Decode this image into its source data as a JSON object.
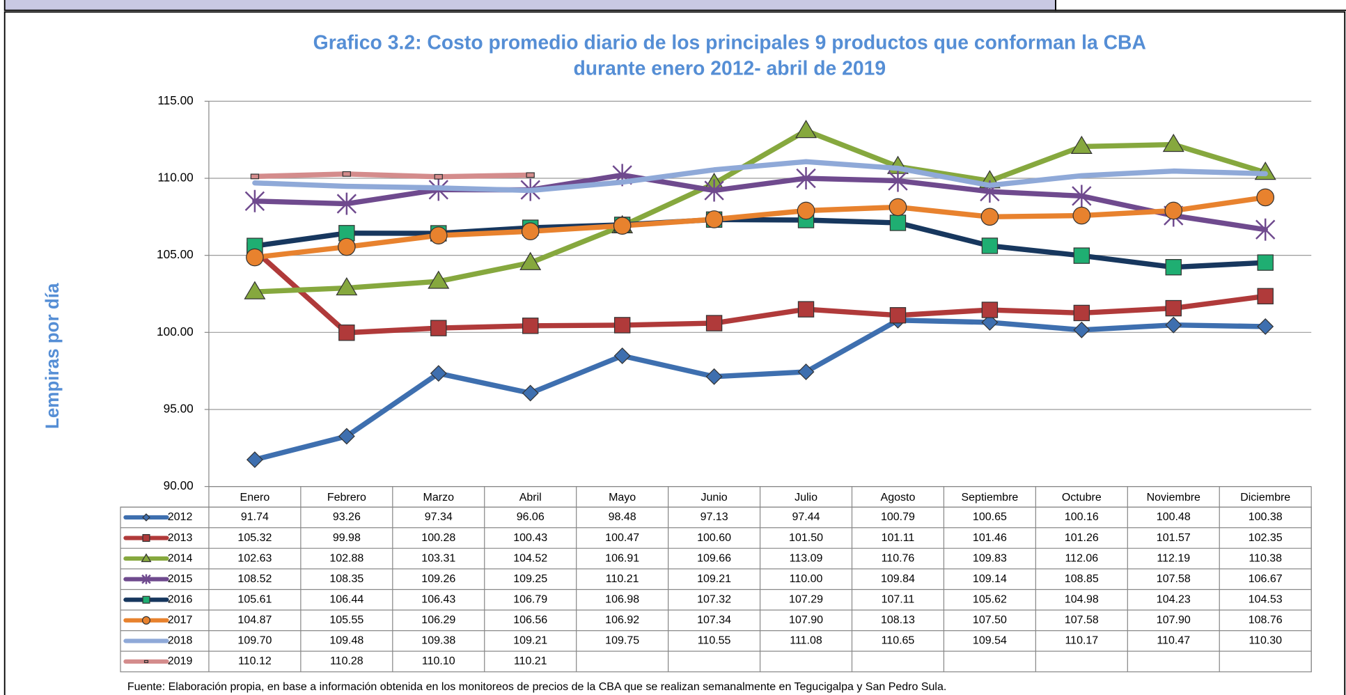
{
  "chart_data": {
    "type": "line",
    "title": [
      "Grafico 3.2: Costo promedio diario de los principales 9 productos que conforman la CBA",
      "durante enero 2012- abril de 2019"
    ],
    "y_label": "Lempiras por día",
    "source": "Fuente: Elaboración propia, en base a información obtenida en los monitoreos de precios de la CBA que se realizan semanalmente en Tegucigalpa y San Pedro Sula.",
    "categories": [
      "Enero",
      "Febrero",
      "Marzo",
      "Abril",
      "Mayo",
      "Junio",
      "Julio",
      "Agosto",
      "Septiembre",
      "Octubre",
      "Noviembre",
      "Diciembre"
    ],
    "ylim": [
      90,
      115
    ],
    "yticks": [
      {
        "value": 90,
        "label": "90.00"
      },
      {
        "value": 95,
        "label": "95.00"
      },
      {
        "value": 100,
        "label": "100.00"
      },
      {
        "value": 105,
        "label": "105.00"
      },
      {
        "value": 110,
        "label": "110.00"
      },
      {
        "value": 115,
        "label": "115.00"
      }
    ],
    "grid": true,
    "series": [
      {
        "name": "2012",
        "color": "#3e6faf",
        "marker": "diamond",
        "values": [
          91.74,
          93.26,
          97.34,
          96.06,
          98.48,
          97.13,
          97.44,
          100.79,
          100.65,
          100.16,
          100.48,
          100.38
        ],
        "value_labels": [
          "91.74",
          "93.26",
          "97.34",
          "96.06",
          "98.48",
          "97.13",
          "97.44",
          "100.79",
          "100.65",
          "100.16",
          "100.48",
          "100.38"
        ]
      },
      {
        "name": "2013",
        "color": "#b03a3a",
        "marker": "square",
        "values": [
          105.32,
          99.98,
          100.28,
          100.43,
          100.47,
          100.6,
          101.5,
          101.11,
          101.46,
          101.26,
          101.57,
          102.35
        ],
        "value_labels": [
          "105.32",
          "99.98",
          "100.28",
          "100.43",
          "100.47",
          "100.60",
          "101.50",
          "101.11",
          "101.46",
          "101.26",
          "101.57",
          "102.35"
        ]
      },
      {
        "name": "2014",
        "color": "#86a83e",
        "marker": "triangle",
        "values": [
          102.63,
          102.88,
          103.31,
          104.52,
          106.91,
          109.66,
          113.09,
          110.76,
          109.83,
          112.06,
          112.19,
          110.38
        ],
        "value_labels": [
          "102.63",
          "102.88",
          "103.31",
          "104.52",
          "106.91",
          "109.66",
          "113.09",
          "110.76",
          "109.83",
          "112.06",
          "112.19",
          "110.38"
        ]
      },
      {
        "name": "2015",
        "color": "#6f4a8e",
        "marker": "star",
        "values": [
          108.52,
          108.35,
          109.26,
          109.25,
          110.21,
          109.21,
          110.0,
          109.84,
          109.14,
          108.85,
          107.58,
          106.67
        ],
        "value_labels": [
          "108.52",
          "108.35",
          "109.26",
          "109.25",
          "110.21",
          "109.21",
          "110.00",
          "109.84",
          "109.14",
          "108.85",
          "107.58",
          "106.67"
        ]
      },
      {
        "name": "2016",
        "color": "#17375e",
        "marker": "square",
        "marker_color": "#1fae72",
        "values": [
          105.61,
          106.44,
          106.43,
          106.79,
          106.98,
          107.32,
          107.29,
          107.11,
          105.62,
          104.98,
          104.23,
          104.53
        ],
        "value_labels": [
          "105.61",
          "106.44",
          "106.43",
          "106.79",
          "106.98",
          "107.32",
          "107.29",
          "107.11",
          "105.62",
          "104.98",
          "104.23",
          "104.53"
        ]
      },
      {
        "name": "2017",
        "color": "#e8822e",
        "marker": "circle",
        "values": [
          104.87,
          105.55,
          106.29,
          106.56,
          106.92,
          107.34,
          107.9,
          108.13,
          107.5,
          107.58,
          107.9,
          108.76
        ],
        "value_labels": [
          "104.87",
          "105.55",
          "106.29",
          "106.56",
          "106.92",
          "107.34",
          "107.90",
          "108.13",
          "107.50",
          "107.58",
          "107.90",
          "108.76"
        ]
      },
      {
        "name": "2018",
        "color": "#8fa9d8",
        "values": [
          109.7,
          109.48,
          109.38,
          109.21,
          109.75,
          110.55,
          111.08,
          110.65,
          109.54,
          110.17,
          110.47,
          110.3
        ],
        "value_labels": [
          "109.70",
          "109.48",
          "109.38",
          "109.21",
          "109.75",
          "110.55",
          "111.08",
          "110.65",
          "109.54",
          "110.17",
          "110.47",
          "110.30"
        ]
      },
      {
        "name": "2019",
        "color": "#d48c8c",
        "marker": "dash",
        "values": [
          110.12,
          110.28,
          110.1,
          110.21,
          null,
          null,
          null,
          null,
          null,
          null,
          null,
          null
        ],
        "value_labels": [
          "110.12",
          "110.28",
          "110.10",
          "110.21",
          null,
          null,
          null,
          null,
          null,
          null,
          null,
          null
        ]
      }
    ]
  }
}
